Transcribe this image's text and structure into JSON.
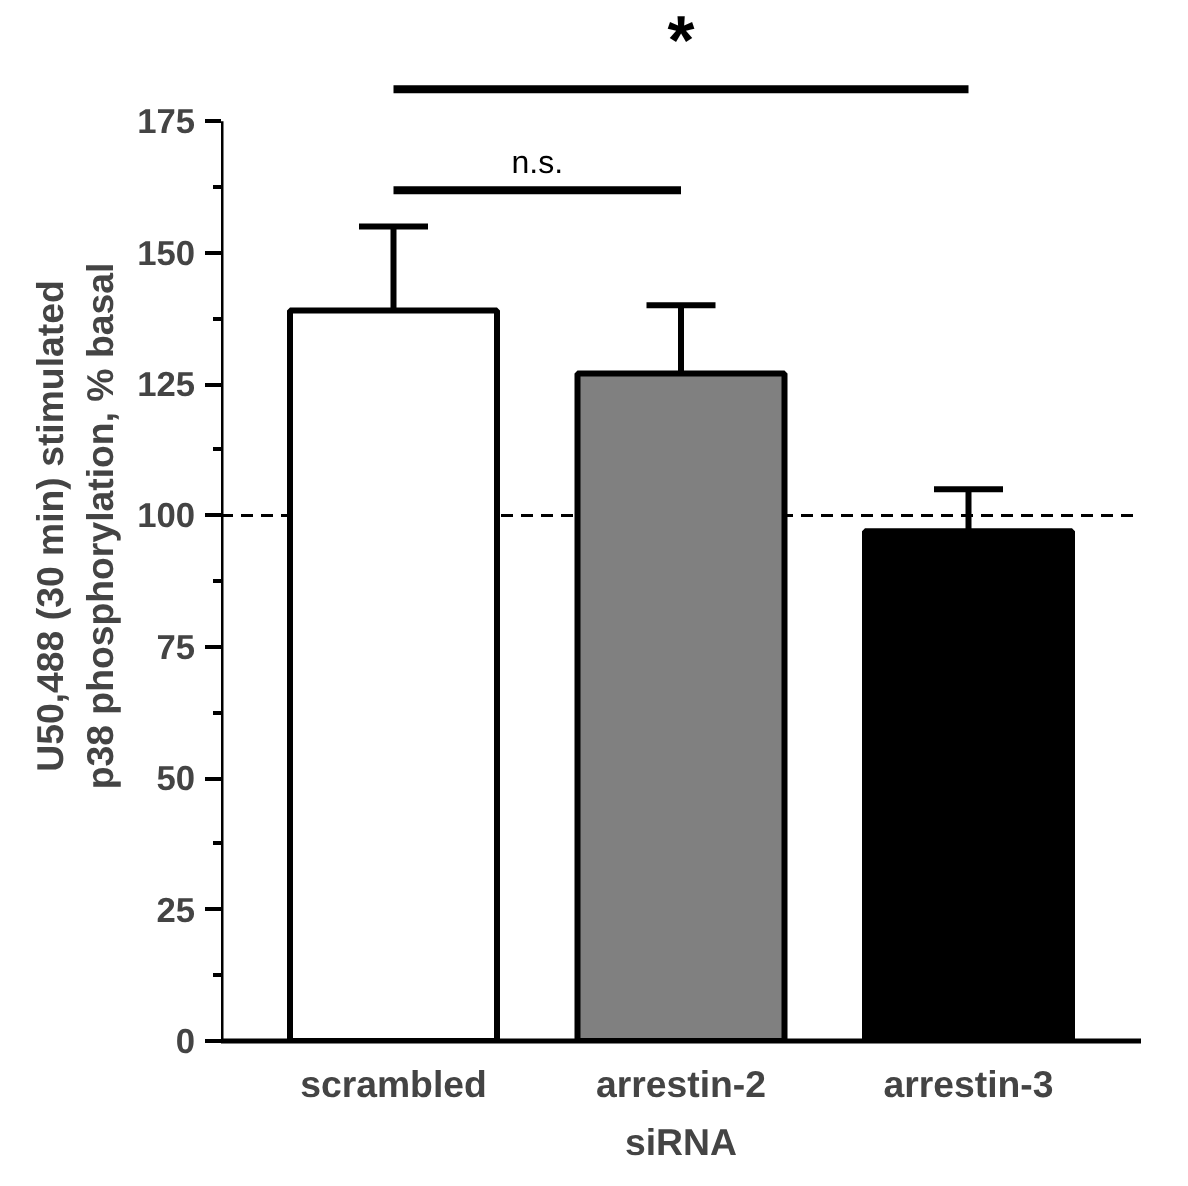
{
  "chart_data": {
    "type": "bar",
    "xlabel": "siRNA",
    "ylabel": "U50,488 (30 min) stimulated\np38 phosphorylation, % basal",
    "categories": [
      "scrambled",
      "arrestin-2",
      "arrestin-3"
    ],
    "values": [
      139,
      127,
      97
    ],
    "colors": [
      "#ffffff",
      "#808080",
      "#000000"
    ],
    "errors": [
      [
        139,
        155
      ],
      [
        127,
        140
      ],
      [
        97,
        105
      ]
    ],
    "ylim": [
      0,
      175
    ],
    "yticks": [
      0,
      25,
      50,
      75,
      100,
      125,
      150,
      175
    ],
    "grid": false,
    "ref_lines": [
      {
        "axis": "y",
        "value": 100,
        "line_style": "dashed",
        "color": "#000000"
      }
    ],
    "annotations": [
      "n.s.",
      "*"
    ]
  }
}
